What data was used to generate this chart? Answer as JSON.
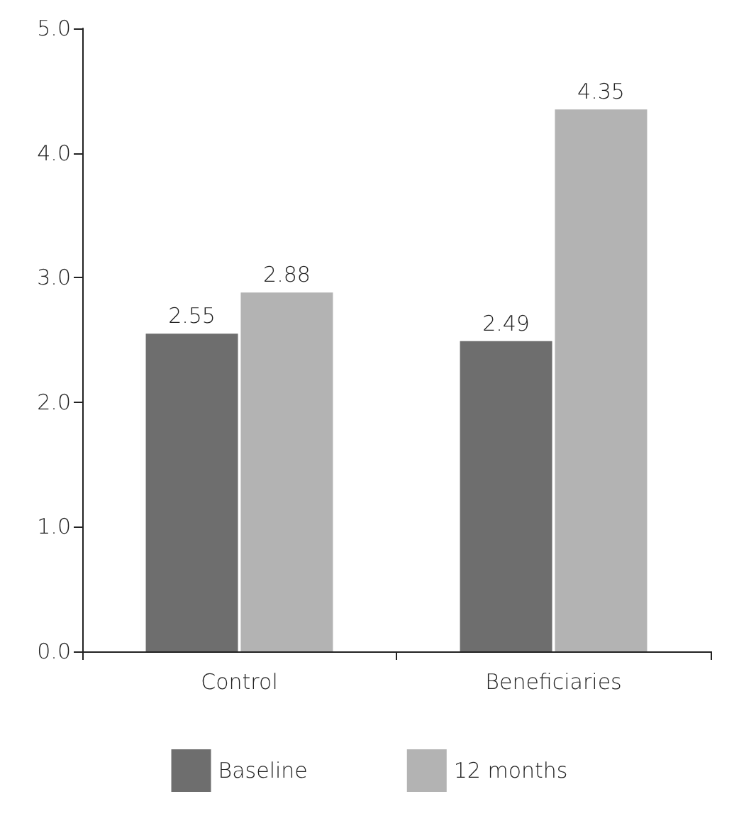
{
  "chart_data": {
    "type": "bar",
    "categories": [
      "Control",
      "Beneficiaries"
    ],
    "series": [
      {
        "name": "Baseline",
        "color": "#6e6e6e",
        "values": [
          2.55,
          2.49
        ]
      },
      {
        "name": "12 months",
        "color": "#b3b3b3",
        "values": [
          2.88,
          4.35
        ]
      }
    ],
    "ylim": [
      0,
      5
    ],
    "yticks": [
      {
        "value": 0,
        "label": "0.0"
      },
      {
        "value": 1,
        "label": "1.0"
      },
      {
        "value": 2,
        "label": "2.0"
      },
      {
        "value": 3,
        "label": "3.0"
      },
      {
        "value": 4,
        "label": "4.0"
      },
      {
        "value": 5,
        "label": "5.0"
      }
    ],
    "data_labels": true,
    "grid": false,
    "legend": "bottom"
  }
}
